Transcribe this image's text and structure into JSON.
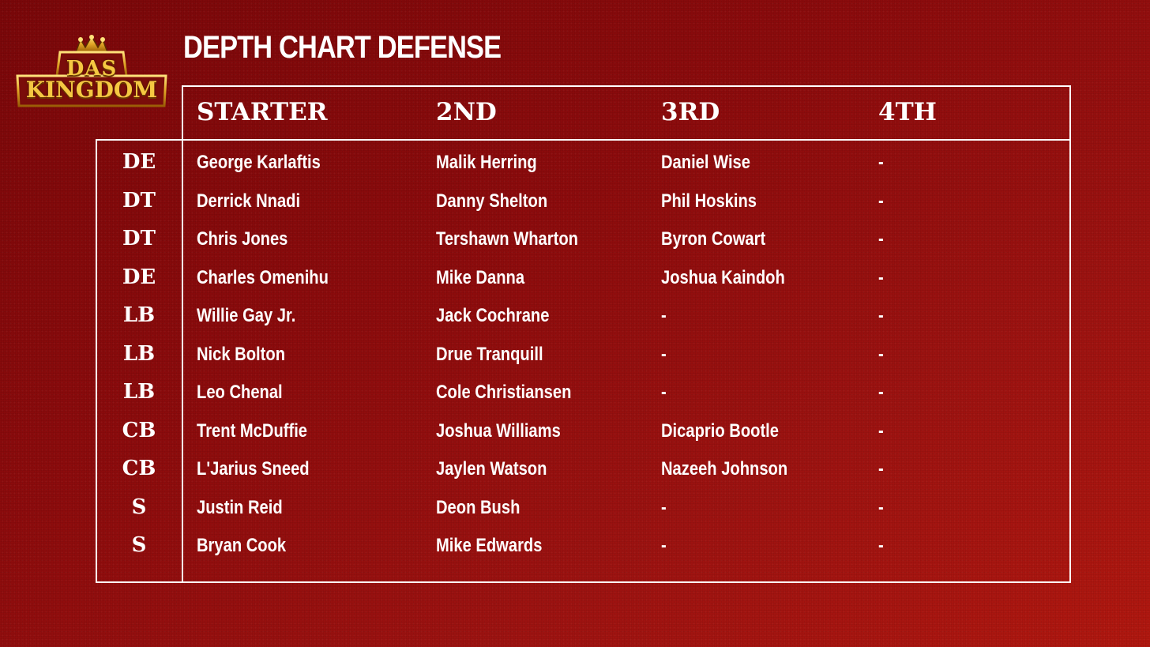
{
  "logo": {
    "line1": "DAS",
    "line2": "KINGDOM"
  },
  "title": "DEPTH CHART DEFENSE",
  "columns": [
    "STARTER",
    "2ND",
    "3RD",
    "4TH"
  ],
  "rows": [
    {
      "pos": "DE",
      "starter": "George Karlaftis",
      "second": "Malik Herring",
      "third": "Daniel Wise",
      "fourth": "-"
    },
    {
      "pos": "DT",
      "starter": "Derrick Nnadi",
      "second": "Danny Shelton",
      "third": "Phil Hoskins",
      "fourth": "-"
    },
    {
      "pos": "DT",
      "starter": "Chris Jones",
      "second": "Tershawn Wharton",
      "third": "Byron Cowart",
      "fourth": "-"
    },
    {
      "pos": "DE",
      "starter": "Charles Omenihu",
      "second": "Mike Danna",
      "third": "Joshua Kaindoh",
      "fourth": "-"
    },
    {
      "pos": "LB",
      "starter": "Willie Gay Jr.",
      "second": "Jack Cochrane",
      "third": "-",
      "fourth": "-"
    },
    {
      "pos": "LB",
      "starter": "Nick Bolton",
      "second": "Drue Tranquill",
      "third": "-",
      "fourth": "-"
    },
    {
      "pos": "LB",
      "starter": "Leo Chenal",
      "second": "Cole Christiansen",
      "third": "-",
      "fourth": "-"
    },
    {
      "pos": "CB",
      "starter": "Trent McDuffie",
      "second": "Joshua Williams",
      "third": "Dicaprio Bootle",
      "fourth": "-"
    },
    {
      "pos": "CB",
      "starter": "L'Jarius Sneed",
      "second": "Jaylen Watson",
      "third": "Nazeeh Johnson",
      "fourth": "-"
    },
    {
      "pos": "S",
      "starter": "Justin Reid",
      "second": "Deon Bush",
      "third": "-",
      "fourth": "-"
    },
    {
      "pos": "S",
      "starter": "Bryan Cook",
      "second": "Mike Edwards",
      "third": "-",
      "fourth": "-"
    }
  ],
  "colors": {
    "background": "#8c0b0c",
    "text": "#ffffff",
    "logo_gold": "#f5c842"
  }
}
